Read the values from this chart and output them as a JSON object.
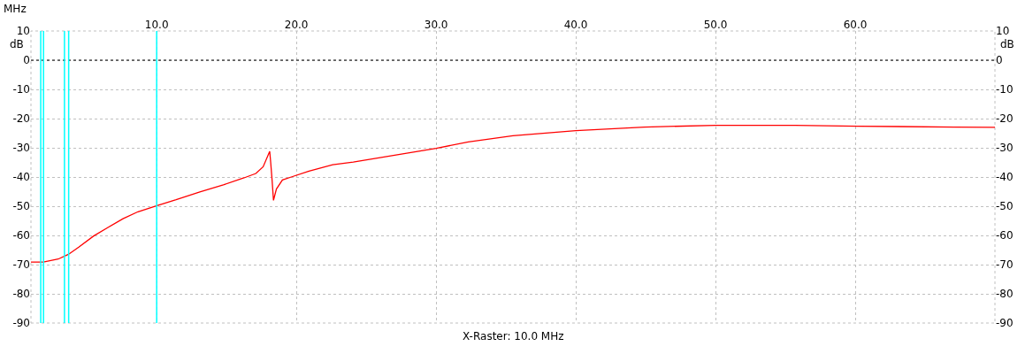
{
  "chart_data": {
    "type": "line",
    "xlabel": "MHz",
    "ylabel": "dB",
    "y2label": "dB",
    "x": [
      1.0,
      1.89,
      2.95,
      3.68,
      4.42,
      5.49,
      6.54,
      7.59,
      8.66,
      10.02,
      11.39,
      13.09,
      14.77,
      16.25,
      17.1,
      17.62,
      18.09,
      18.16,
      18.26,
      18.36,
      18.57,
      19.0,
      19.63,
      20.9,
      22.6,
      24.07,
      30.0,
      32.3,
      35.5,
      40.0,
      44.9,
      50.0,
      55.7,
      60.2,
      67.1,
      70.0
    ],
    "series": [
      {
        "color": "#ff0000",
        "values": [
          -69.1,
          -69.1,
          -68.1,
          -66.5,
          -64.0,
          -60.2,
          -57.2,
          -54.3,
          -51.9,
          -49.8,
          -47.8,
          -45.1,
          -42.7,
          -40.3,
          -38.8,
          -36.5,
          -31.2,
          -35.0,
          -41.1,
          -48.0,
          -44.1,
          -41.0,
          -40.0,
          -38.0,
          -35.8,
          -34.9,
          -30.2,
          -28.0,
          -25.9,
          -24.1,
          -22.9,
          -22.3,
          -22.3,
          -22.6,
          -22.9,
          -23.0
        ]
      }
    ],
    "xlim": [
      1,
      70
    ],
    "xticks": [
      {
        "value": 10,
        "label": "10.0"
      },
      {
        "value": 20,
        "label": "20.0"
      },
      {
        "value": 30,
        "label": "30.0"
      },
      {
        "value": 40,
        "label": "40.0"
      },
      {
        "value": 50,
        "label": "50.0"
      },
      {
        "value": 60,
        "label": "60.0"
      }
    ],
    "ylim": [
      -90,
      10
    ],
    "yticks": [
      10,
      0,
      -10,
      -20,
      -30,
      -40,
      -50,
      -60,
      -70,
      -80,
      -90
    ],
    "y2lim": [
      -90,
      10
    ],
    "y2ticks": [
      10,
      0,
      -10,
      -20,
      -30,
      -40,
      -50,
      -60,
      -70,
      -80,
      -90
    ],
    "grid": true,
    "line_style": "solid",
    "marker": "none",
    "ref_lines": [
      {
        "axis": "y",
        "value": 0,
        "color": "#000000",
        "line_style": "dotted"
      },
      {
        "axis": "x",
        "value": 1.7,
        "color": "#00ffff",
        "line_style": "solid"
      },
      {
        "axis": "x",
        "value": 1.9,
        "color": "#00ffff",
        "line_style": "solid"
      },
      {
        "axis": "x",
        "value": 3.4,
        "color": "#00ffff",
        "line_style": "solid"
      },
      {
        "axis": "x",
        "value": 3.7,
        "color": "#00ffff",
        "line_style": "solid"
      },
      {
        "axis": "x",
        "value": 10,
        "color": "#00ffff",
        "line_style": "solid"
      }
    ],
    "annotations": [
      "X-Raster: 10.0 MHz"
    ]
  }
}
